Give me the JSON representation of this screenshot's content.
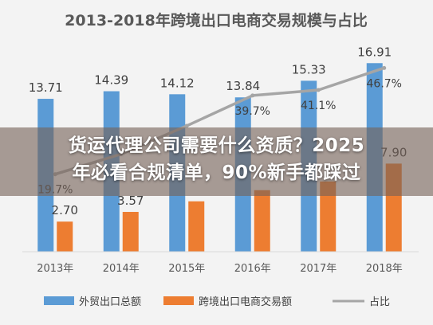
{
  "chart_data": {
    "type": "bar",
    "title": "2013-2018年跨境出口电商交易规模与占比",
    "categories": [
      "2013年",
      "2014年",
      "2015年",
      "2016年",
      "2017年",
      "2018年"
    ],
    "series": [
      {
        "name": "外贸出口总额",
        "type": "bar",
        "color": "#5b9bd5",
        "values": [
          13.71,
          14.39,
          14.12,
          13.84,
          15.33,
          16.91
        ]
      },
      {
        "name": "跨境出口电商交易额",
        "type": "bar",
        "color": "#ed7d31",
        "values": [
          2.7,
          3.57,
          4.52,
          5.52,
          6.3,
          7.9
        ]
      },
      {
        "name": "占比",
        "type": "line",
        "color": "#a5a5a5",
        "values": [
          19.7,
          24.8,
          32.0,
          39.7,
          41.1,
          46.7
        ]
      }
    ],
    "labels": {
      "total": [
        "13.71",
        "14.39",
        "14.12",
        "13.84",
        "15.33",
        "16.91"
      ],
      "ecommerce": [
        "2.70",
        "3.57",
        "",
        "",
        "",
        "7.90"
      ],
      "share": [
        "19.7%",
        "",
        "",
        "39.7%",
        "41.1%",
        "46.7%"
      ]
    },
    "ylim": [
      0,
      18
    ],
    "share_ylim": [
      0,
      50
    ],
    "grid": false,
    "legend": "bottom"
  },
  "overlay": {
    "line1": "货运代理公司需要什么资质？2025",
    "line2": "年必看合规清单，90%新手都踩过"
  }
}
